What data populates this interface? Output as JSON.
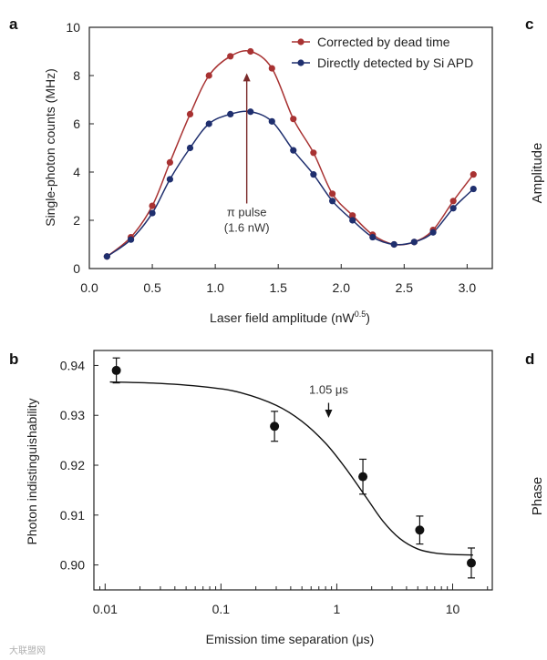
{
  "panels": {
    "a": "a",
    "b": "b",
    "c": "c",
    "d": "d"
  },
  "side_labels": {
    "c": "Amplitude",
    "d": "Phase"
  },
  "watermark": "大联盟网",
  "colors": {
    "red": "#a83232",
    "blue": "#1f2f6e",
    "axis": "#222222"
  },
  "chart_data": [
    {
      "type": "line",
      "panel": "a",
      "xlabel": "Laser field amplitude (nW",
      "xlabel_sup": "0.5",
      "xlabel_end": ")",
      "ylabel": "Single-photon counts (MHz)",
      "xlim": [
        0.0,
        3.2
      ],
      "ylim": [
        0,
        10
      ],
      "xticks": [
        0.0,
        0.5,
        1.0,
        1.5,
        2.0,
        2.5,
        3.0
      ],
      "xtick_labels": [
        "0.0",
        "0.5",
        "1.0",
        "1.5",
        "2.0",
        "2.5",
        "3.0"
      ],
      "yticks": [
        0,
        2,
        4,
        6,
        8,
        10
      ],
      "ytick_labels": [
        "0",
        "2",
        "4",
        "6",
        "8",
        "10"
      ],
      "legend_position": "top-right",
      "annotation": {
        "line1": "π pulse",
        "line2": "(1.6 nW)",
        "x": 1.25,
        "y_from": 2.7,
        "y_to": 8.1
      },
      "series": [
        {
          "name": "Corrected by dead time",
          "color": "#a83232",
          "x": [
            0.14,
            0.33,
            0.5,
            0.64,
            0.8,
            0.95,
            1.12,
            1.28,
            1.45,
            1.62,
            1.78,
            1.93,
            2.09,
            2.25,
            2.42,
            2.58,
            2.73,
            2.89,
            3.05
          ],
          "y": [
            0.5,
            1.3,
            2.6,
            4.4,
            6.4,
            8.0,
            8.8,
            9.0,
            8.3,
            6.2,
            4.8,
            3.1,
            2.2,
            1.4,
            1.0,
            1.1,
            1.6,
            2.8,
            3.9
          ]
        },
        {
          "name": "Directly detected by Si APD",
          "color": "#1f2f6e",
          "x": [
            0.14,
            0.33,
            0.5,
            0.64,
            0.8,
            0.95,
            1.12,
            1.28,
            1.45,
            1.62,
            1.78,
            1.93,
            2.09,
            2.25,
            2.42,
            2.58,
            2.73,
            2.89,
            3.05
          ],
          "y": [
            0.5,
            1.2,
            2.3,
            3.7,
            5.0,
            6.0,
            6.4,
            6.5,
            6.1,
            4.9,
            3.9,
            2.8,
            2.0,
            1.3,
            1.0,
            1.1,
            1.5,
            2.5,
            3.3
          ]
        }
      ]
    },
    {
      "type": "scatter",
      "panel": "b",
      "xlabel": "Emission time separation (μs)",
      "ylabel": "Photon indistinguishability",
      "xscale": "log",
      "xlim": [
        0.008,
        22
      ],
      "ylim": [
        0.895,
        0.943
      ],
      "xticks": [
        0.01,
        0.1,
        1,
        10
      ],
      "xtick_labels": [
        "0.01",
        "0.1",
        "1",
        "10"
      ],
      "yticks": [
        0.9,
        0.91,
        0.92,
        0.93,
        0.94
      ],
      "ytick_labels": [
        "0.90",
        "0.91",
        "0.92",
        "0.93",
        "0.94"
      ],
      "annotation": {
        "text": "1.05 μs",
        "x": 0.85,
        "y_from": 0.9325,
        "y_to": 0.9295
      },
      "points": [
        {
          "x": 0.0125,
          "y": 0.939,
          "err": 0.0025
        },
        {
          "x": 0.29,
          "y": 0.9278,
          "err": 0.003
        },
        {
          "x": 1.68,
          "y": 0.9177,
          "err": 0.0035
        },
        {
          "x": 5.2,
          "y": 0.907,
          "err": 0.0028
        },
        {
          "x": 14.5,
          "y": 0.9004,
          "err": 0.003
        }
      ],
      "fit": {
        "x": [
          0.011,
          0.03,
          0.08,
          0.15,
          0.3,
          0.5,
          0.8,
          1.2,
          1.8,
          2.5,
          3.5,
          5.0,
          7.0,
          10.0,
          15.0
        ],
        "y": [
          0.9367,
          0.9364,
          0.9356,
          0.9345,
          0.932,
          0.9288,
          0.9244,
          0.9193,
          0.9135,
          0.9088,
          0.9053,
          0.9032,
          0.9024,
          0.9021,
          0.902
        ]
      }
    }
  ]
}
